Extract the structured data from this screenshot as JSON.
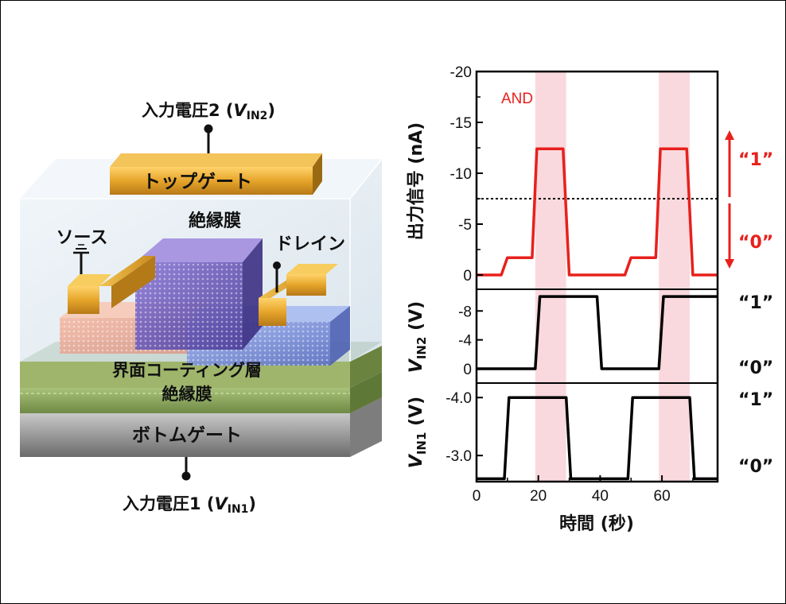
{
  "device": {
    "input2_label": "入力電圧2 (",
    "input2_sub": "IN2",
    "input1_label": "入力電圧1 (",
    "input1_sub": "IN1",
    "v_letter": "V",
    "close_paren": ")",
    "top_gate": "トップゲート",
    "insulator_top": "絶縁膜",
    "source": "ソース",
    "drain": "ドレイン",
    "interface_layer": "界面コーティング層",
    "insulator_bottom": "絶縁膜",
    "bottom_gate": "ボトムゲート",
    "colors": {
      "gold": "#e2a52a",
      "gold_dark": "#9a6a12",
      "glass": "#dfeaf2",
      "green_layer": "#8aa860",
      "gray_gate": "#9a9a9a"
    }
  },
  "plot": {
    "and_label": "AND",
    "x_title": "時間 (秒)",
    "x_ticks": [
      "0",
      "20",
      "40",
      "60"
    ],
    "out_y_title": "出力信号 (nA)",
    "out_y_ticks": [
      "-20",
      "-15",
      "-10",
      "-5",
      "0"
    ],
    "vin2_y_title_pre": "V",
    "vin2_y_title_sub": "IN2",
    "vin2_y_title_post": " (V)",
    "vin2_y_ticks": [
      "-8",
      "-4",
      "0"
    ],
    "vin1_y_title_pre": "V",
    "vin1_y_title_sub": "IN1",
    "vin1_y_title_post": " (V)",
    "vin1_y_ticks": [
      "-4.0",
      "-3.0"
    ],
    "logic_one": "“1”",
    "logic_zero": "“0”",
    "colors": {
      "output_line": "#e8201c",
      "input_line": "#000000",
      "highlight": "#f9d9de"
    }
  },
  "chart_data": {
    "type": "line",
    "x": [
      0,
      8,
      10,
      16,
      18,
      20,
      26,
      28,
      30,
      40,
      48,
      50,
      56,
      58,
      60,
      66,
      68,
      70,
      78
    ],
    "x_unit": "秒",
    "xlim": [
      0,
      78
    ],
    "highlight_ranges": [
      [
        19,
        29
      ],
      [
        59,
        69
      ]
    ],
    "output": {
      "ylim": [
        0,
        -20
      ],
      "threshold": -7.5,
      "points": [
        [
          0,
          0
        ],
        [
          8,
          0
        ],
        [
          10,
          -1.7
        ],
        [
          18,
          -1.7
        ],
        [
          19.5,
          -12.4
        ],
        [
          28,
          -12.4
        ],
        [
          30,
          0
        ],
        [
          48,
          0
        ],
        [
          50,
          -1.7
        ],
        [
          58,
          -1.7
        ],
        [
          59.5,
          -12.4
        ],
        [
          68,
          -12.4
        ],
        [
          70,
          0
        ],
        [
          78,
          0
        ]
      ]
    },
    "vin2": {
      "ylim": [
        0,
        -11
      ],
      "points": [
        [
          0,
          0
        ],
        [
          19,
          0
        ],
        [
          20.5,
          -10
        ],
        [
          39,
          -10
        ],
        [
          40.5,
          0
        ],
        [
          59,
          0
        ],
        [
          60.5,
          -10
        ],
        [
          78,
          -10
        ]
      ]
    },
    "vin1": {
      "ylim": [
        -2.55,
        -4.25
      ],
      "points": [
        [
          0,
          -2.6
        ],
        [
          9,
          -2.6
        ],
        [
          10.5,
          -4.0
        ],
        [
          29,
          -4.0
        ],
        [
          30.5,
          -2.6
        ],
        [
          49,
          -2.6
        ],
        [
          50.5,
          -4.0
        ],
        [
          69,
          -4.0
        ],
        [
          70.5,
          -2.6
        ],
        [
          78,
          -2.6
        ]
      ]
    }
  }
}
